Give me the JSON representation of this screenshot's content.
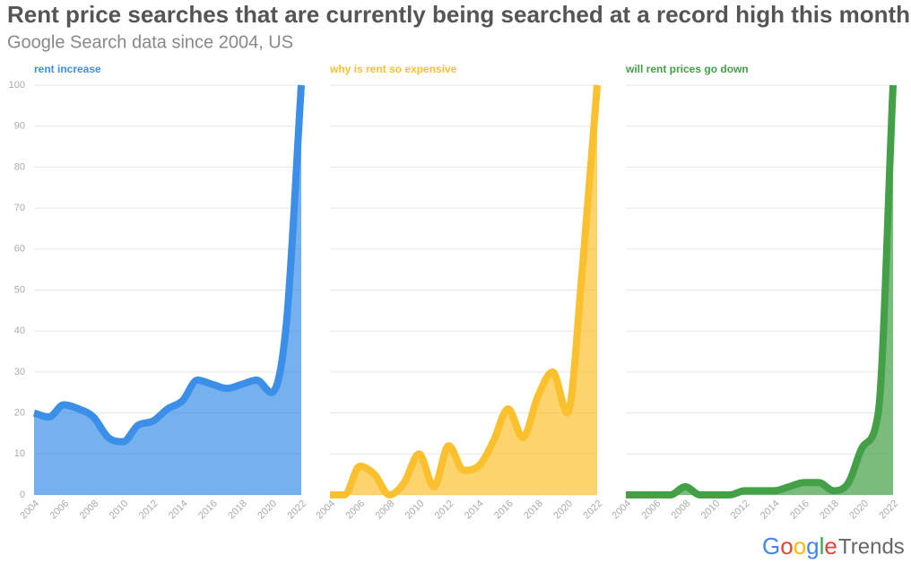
{
  "title": "Rent price searches that are currently being searched at a record high this month",
  "subtitle": "Google Search data since 2004, US",
  "brand": {
    "name": "Google",
    "product": "Trends"
  },
  "chart_data": [
    {
      "type": "area",
      "title": "rent increase",
      "color": "#3b8fe8",
      "x": [
        2004,
        2005,
        2006,
        2007,
        2008,
        2009,
        2010,
        2011,
        2012,
        2013,
        2014,
        2015,
        2016,
        2017,
        2018,
        2019,
        2020,
        2021,
        2022
      ],
      "values": [
        20,
        19,
        22,
        21,
        19,
        14,
        13,
        17,
        18,
        21,
        23,
        28,
        27,
        26,
        27,
        28,
        25,
        42,
        100
      ],
      "xlim": [
        2004,
        2022
      ],
      "xticks": [
        2004,
        2006,
        2008,
        2010,
        2012,
        2014,
        2016,
        2018,
        2020,
        2022
      ],
      "ylim": [
        0,
        100
      ],
      "yticks": [
        0,
        10,
        20,
        30,
        40,
        50,
        60,
        70,
        80,
        90,
        100
      ],
      "grid": true
    },
    {
      "type": "area",
      "title": "why is rent so expensive",
      "color": "#fbc02d",
      "x": [
        2004,
        2005,
        2006,
        2007,
        2008,
        2009,
        2010,
        2011,
        2012,
        2013,
        2014,
        2015,
        2016,
        2017,
        2018,
        2019,
        2020,
        2021,
        2022
      ],
      "values": [
        0,
        0,
        7,
        5,
        0,
        3,
        10,
        2,
        12,
        6,
        7,
        13,
        21,
        14,
        24,
        30,
        20,
        55,
        100
      ],
      "xlim": [
        2004,
        2022
      ],
      "xticks": [
        2004,
        2006,
        2008,
        2010,
        2012,
        2014,
        2016,
        2018,
        2020,
        2022
      ],
      "ylim": [
        0,
        100
      ],
      "grid": true
    },
    {
      "type": "area",
      "title": "will rent prices go down",
      "color": "#43a047",
      "x": [
        2004,
        2005,
        2006,
        2007,
        2008,
        2009,
        2010,
        2011,
        2012,
        2013,
        2014,
        2015,
        2016,
        2017,
        2018,
        2019,
        2020,
        2021,
        2022
      ],
      "values": [
        0,
        0,
        0,
        0,
        2,
        0,
        0,
        0,
        1,
        1,
        1,
        2,
        3,
        3,
        1,
        3,
        12,
        20,
        100
      ],
      "xlim": [
        2004,
        2022
      ],
      "xticks": [
        2004,
        2006,
        2008,
        2010,
        2012,
        2014,
        2016,
        2018,
        2020,
        2022
      ],
      "ylim": [
        0,
        100
      ],
      "grid": true
    }
  ]
}
